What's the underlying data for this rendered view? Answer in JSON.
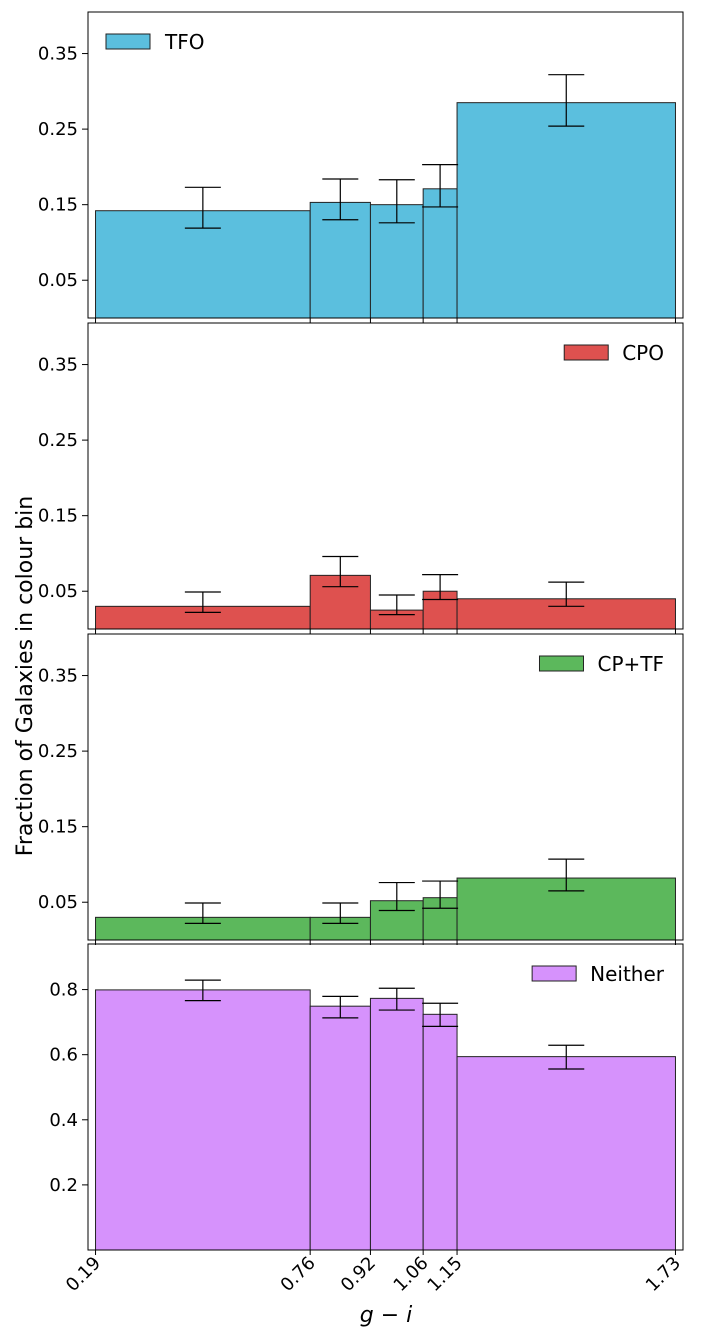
{
  "figure": {
    "ylabel": "Fraction of Galaxies in colour bin",
    "xlabel": "g − i"
  },
  "chart_data": [
    {
      "type": "bar",
      "series": [
        {
          "name": "TFO",
          "color": "#5bbfde"
        }
      ],
      "bin_edges": [
        0.19,
        0.76,
        0.92,
        1.06,
        1.15,
        1.73
      ],
      "values": [
        0.142,
        0.153,
        0.15,
        0.171,
        0.285
      ],
      "error_low": [
        0.119,
        0.13,
        0.126,
        0.147,
        0.254
      ],
      "error_high": [
        0.173,
        0.184,
        0.183,
        0.203,
        0.322
      ],
      "yticks": [
        "0.05",
        "0.15",
        "0.25",
        "0.35"
      ],
      "ytick_values": [
        0.05,
        0.15,
        0.25,
        0.35
      ],
      "ylim": [
        0.0,
        0.405
      ],
      "legend_position": "top-left"
    },
    {
      "type": "bar",
      "series": [
        {
          "name": "CPO",
          "color": "#de514f"
        }
      ],
      "bin_edges": [
        0.19,
        0.76,
        0.92,
        1.06,
        1.15,
        1.73
      ],
      "values": [
        0.03,
        0.071,
        0.025,
        0.05,
        0.04
      ],
      "error_low": [
        0.022,
        0.056,
        0.019,
        0.039,
        0.03
      ],
      "error_high": [
        0.049,
        0.096,
        0.045,
        0.072,
        0.062
      ],
      "yticks": [
        "0.05",
        "0.15",
        "0.25",
        "0.35"
      ],
      "ytick_values": [
        0.05,
        0.15,
        0.25,
        0.35
      ],
      "ylim": [
        0.0,
        0.405
      ],
      "legend_position": "top-right"
    },
    {
      "type": "bar",
      "series": [
        {
          "name": "CP+TF",
          "color": "#5cb85c"
        }
      ],
      "bin_edges": [
        0.19,
        0.76,
        0.92,
        1.06,
        1.15,
        1.73
      ],
      "values": [
        0.03,
        0.03,
        0.052,
        0.056,
        0.082
      ],
      "error_low": [
        0.022,
        0.022,
        0.039,
        0.042,
        0.065
      ],
      "error_high": [
        0.049,
        0.049,
        0.076,
        0.078,
        0.107
      ],
      "yticks": [
        "0.05",
        "0.15",
        "0.25",
        "0.35"
      ],
      "ytick_values": [
        0.05,
        0.15,
        0.25,
        0.35
      ],
      "ylim": [
        0.0,
        0.405
      ],
      "legend_position": "top-right"
    },
    {
      "type": "bar",
      "series": [
        {
          "name": "Neither",
          "color": "#d692fc"
        }
      ],
      "bin_edges": [
        0.19,
        0.76,
        0.92,
        1.06,
        1.15,
        1.73
      ],
      "values": [
        0.799,
        0.749,
        0.773,
        0.724,
        0.594
      ],
      "error_low": [
        0.766,
        0.713,
        0.737,
        0.687,
        0.556
      ],
      "error_high": [
        0.829,
        0.779,
        0.804,
        0.758,
        0.629
      ],
      "yticks": [
        "0.2",
        "0.4",
        "0.6",
        "0.8"
      ],
      "ytick_values": [
        0.2,
        0.4,
        0.6,
        0.8
      ],
      "ylim": [
        0.0,
        0.94
      ],
      "legend_position": "top-right"
    }
  ],
  "xticks": [
    "0.19",
    "0.76",
    "0.92",
    "1.06",
    "1.15",
    "1.73"
  ],
  "xtick_values": [
    0.19,
    0.76,
    0.92,
    1.06,
    1.15,
    1.73
  ],
  "xlim": [
    0.17,
    1.75
  ]
}
